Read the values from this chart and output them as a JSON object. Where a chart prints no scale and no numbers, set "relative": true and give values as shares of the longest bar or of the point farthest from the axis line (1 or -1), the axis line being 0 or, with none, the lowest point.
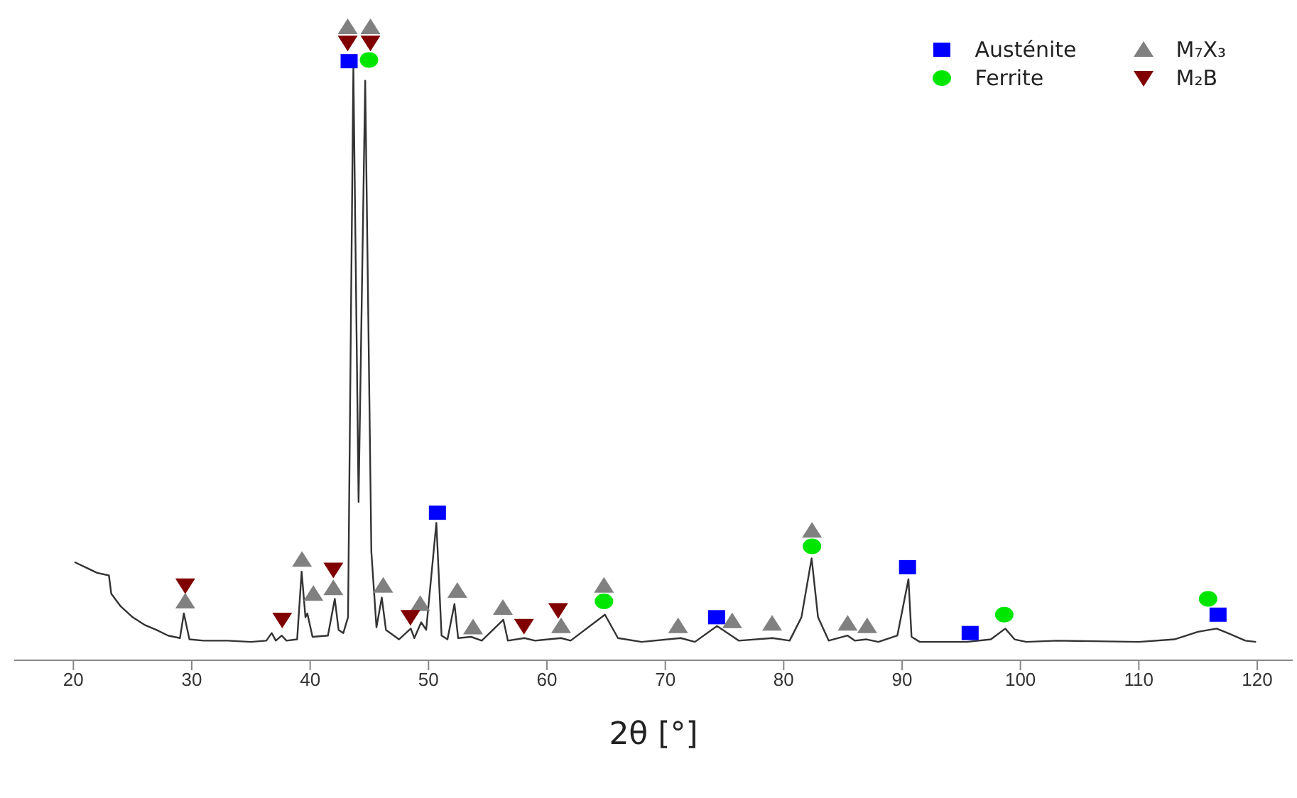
{
  "chart_data": {
    "type": "line",
    "relative": true,
    "xlabel": "2θ [°]",
    "xlim": [
      15,
      123
    ],
    "xticks": [
      20,
      30,
      40,
      50,
      60,
      70,
      80,
      90,
      100,
      110,
      120
    ],
    "legend": "top right",
    "series": [
      {
        "color": "#333333",
        "marker": "none",
        "x": [
          20.1,
          21,
          22,
          23.0,
          23.2,
          24,
          25,
          26,
          27,
          28,
          29,
          29.33,
          29.8,
          31,
          33,
          35,
          36.3,
          36.75,
          37.1,
          37.6,
          38,
          38.9,
          39.28,
          39.6,
          39.76,
          40.2,
          41.5,
          42.08,
          42.4,
          42.8,
          43.2,
          43.65,
          44.09,
          44.65,
          45.17,
          45.6,
          46.05,
          46.4,
          47.5,
          48.5,
          48.8,
          49.38,
          49.8,
          50.66,
          51.1,
          51.6,
          52.19,
          52.5,
          53.6,
          54.5,
          56.32,
          56.7,
          58.1,
          59,
          61.2,
          62,
          64.9,
          66,
          68,
          71.3,
          72.5,
          74.37,
          75.26,
          76.2,
          79.06,
          80.5,
          81.5,
          82.36,
          82.9,
          83.8,
          85.4,
          86,
          87.0,
          88,
          89.6,
          90.54,
          90.8,
          91.5,
          95.5,
          97.5,
          98.72,
          99.5,
          100.5,
          103.1,
          110,
          113,
          115,
          116.57,
          117.5,
          119,
          119.9
        ],
        "values": [
          0.155,
          0.147,
          0.138,
          0.134,
          0.105,
          0.085,
          0.068,
          0.056,
          0.048,
          0.039,
          0.035,
          0.074,
          0.033,
          0.031,
          0.031,
          0.029,
          0.031,
          0.043,
          0.031,
          0.039,
          0.031,
          0.033,
          0.14,
          0.068,
          0.074,
          0.037,
          0.039,
          0.097,
          0.048,
          0.043,
          0.068,
          0.936,
          0.25,
          0.915,
          0.171,
          0.052,
          0.099,
          0.048,
          0.033,
          0.05,
          0.035,
          0.06,
          0.048,
          0.217,
          0.039,
          0.033,
          0.089,
          0.035,
          0.037,
          0.031,
          0.064,
          0.031,
          0.035,
          0.031,
          0.035,
          0.031,
          0.072,
          0.035,
          0.029,
          0.035,
          0.029,
          0.054,
          0.043,
          0.031,
          0.035,
          0.031,
          0.068,
          0.161,
          0.068,
          0.031,
          0.039,
          0.031,
          0.033,
          0.029,
          0.039,
          0.128,
          0.037,
          0.029,
          0.029,
          0.033,
          0.05,
          0.033,
          0.029,
          0.031,
          0.029,
          0.033,
          0.045,
          0.05,
          0.043,
          0.031,
          0.029
        ]
      },
      {
        "type": "scatter",
        "name": "Austénite",
        "color": "#0000ff",
        "marker": "square",
        "x": [
          43.29,
          50.75,
          74.33,
          90.46,
          95.75,
          116.69
        ],
        "values": [
          0.946,
          0.233,
          0.068,
          0.147,
          0.043,
          0.072
        ]
      },
      {
        "type": "scatter",
        "name": "Ferrite",
        "color": "#00e600",
        "marker": "circle",
        "x": [
          44.97,
          64.82,
          82.39,
          98.63,
          115.85
        ],
        "values": [
          0.948,
          0.093,
          0.18,
          0.072,
          0.097
        ]
      },
      {
        "type": "scatter",
        "name": "M₇X₃",
        "color": "#808080",
        "marker": "triangle",
        "x": [
          43.17,
          45.09,
          29.45,
          39.31,
          40.27,
          41.96,
          46.17,
          49.3,
          52.43,
          53.76,
          56.28,
          61.2,
          64.82,
          71.08,
          75.65,
          79.02,
          82.39,
          85.4,
          87.05
        ],
        "values": [
          1.0,
          1.0,
          0.093,
          0.159,
          0.105,
          0.114,
          0.118,
          0.089,
          0.11,
          0.052,
          0.083,
          0.054,
          0.118,
          0.054,
          0.062,
          0.058,
          0.205,
          0.058,
          0.054
        ]
      },
      {
        "type": "scatter",
        "name": "M₂B",
        "color": "#800000",
        "marker": "triangle-down",
        "x": [
          29.45,
          37.64,
          41.96,
          43.17,
          45.09,
          48.47,
          58.06,
          60.95
        ],
        "values": [
          0.118,
          0.064,
          0.143,
          0.975,
          0.975,
          0.068,
          0.054,
          0.079
        ]
      }
    ]
  }
}
